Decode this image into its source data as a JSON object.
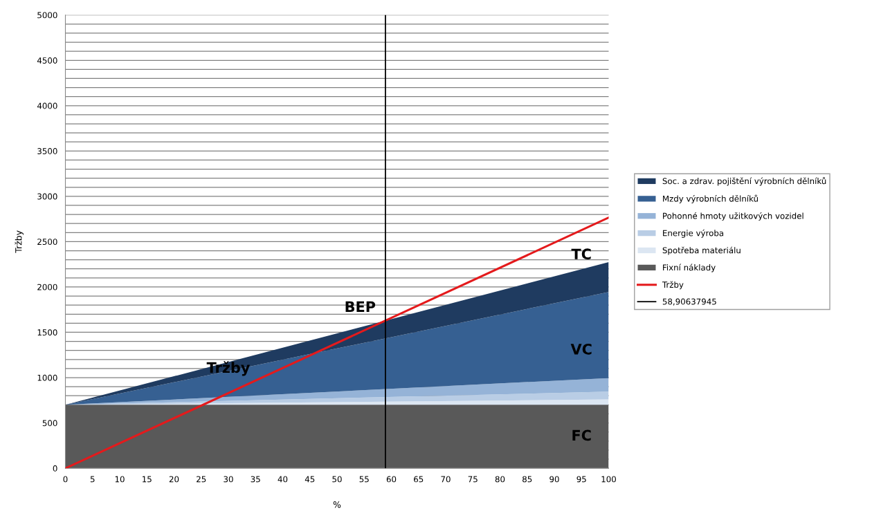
{
  "chart_data": {
    "type": "area",
    "stacked": true,
    "xlabel": "%",
    "ylabel": "Tržby",
    "x": [
      0,
      100
    ],
    "series": [
      {
        "name": "Fixní náklady",
        "color": "#595959",
        "values": [
          700,
          700
        ]
      },
      {
        "name": "Spotřeba materiálu",
        "color": "#dce6f2",
        "values": [
          0,
          60
        ]
      },
      {
        "name": "Energie výroba",
        "color": "#b9cde5",
        "values": [
          0,
          85
        ]
      },
      {
        "name": "Pohonné hmoty užitkových vozidel",
        "color": "#95b3d7",
        "values": [
          0,
          150
        ]
      },
      {
        "name": "Mzdy výrobních dělníků",
        "color": "#366092",
        "values": [
          0,
          950
        ]
      },
      {
        "name": "Soc. a zdrav. pojištění výrobních dělníků",
        "color": "#1f3b60",
        "values": [
          0,
          330
        ]
      },
      {
        "name": "Tržby",
        "type": "line",
        "color": "#e41a1c",
        "values": [
          0,
          2765
        ]
      },
      {
        "name": "58,90637945",
        "type": "line",
        "color": "#000000",
        "x": [
          58.90637945,
          58.90637945
        ],
        "values": [
          0,
          5000
        ]
      }
    ],
    "xlim": [
      0,
      100
    ],
    "xticks": [
      0,
      5,
      10,
      15,
      20,
      25,
      30,
      35,
      40,
      45,
      50,
      55,
      60,
      65,
      70,
      75,
      80,
      85,
      90,
      95,
      100
    ],
    "ylim": [
      0,
      5000
    ],
    "yticks": [
      0,
      {
        "value": 100,
        "label": null
      },
      {
        "value": 200,
        "label": null
      },
      {
        "value": 300,
        "label": null
      },
      {
        "value": 400,
        "label": null
      },
      500,
      {
        "value": 600,
        "label": null
      },
      {
        "value": 700,
        "label": null
      },
      {
        "value": 800,
        "label": null
      },
      {
        "value": 900,
        "label": null
      },
      1000,
      {
        "value": 1100,
        "label": null
      },
      {
        "value": 1200,
        "label": null
      },
      {
        "value": 1300,
        "label": null
      },
      {
        "value": 1400,
        "label": null
      },
      1500,
      {
        "value": 1600,
        "label": null
      },
      {
        "value": 1700,
        "label": null
      },
      {
        "value": 1800,
        "label": null
      },
      {
        "value": 1900,
        "label": null
      },
      2000,
      {
        "value": 2100,
        "label": null
      },
      {
        "value": 2200,
        "label": null
      },
      {
        "value": 2300,
        "label": null
      },
      {
        "value": 2400,
        "label": null
      },
      2500,
      {
        "value": 2600,
        "label": null
      },
      {
        "value": 2700,
        "label": null
      },
      {
        "value": 2800,
        "label": null
      },
      {
        "value": 2900,
        "label": null
      },
      3000,
      {
        "value": 3100,
        "label": null
      },
      {
        "value": 3200,
        "label": null
      },
      {
        "value": 3300,
        "label": null
      },
      {
        "value": 3400,
        "label": null
      },
      3500,
      {
        "value": 3600,
        "label": null
      },
      {
        "value": 3700,
        "label": null
      },
      {
        "value": 3800,
        "label": null
      },
      {
        "value": 3900,
        "label": null
      },
      4000,
      {
        "value": 4100,
        "label": null
      },
      {
        "value": 4200,
        "label": null
      },
      {
        "value": 4300,
        "label": null
      },
      {
        "value": 4400,
        "label": null
      },
      4500,
      {
        "value": 4600,
        "label": null
      },
      {
        "value": 4700,
        "label": null
      },
      {
        "value": 4800,
        "label": null
      },
      {
        "value": 4900,
        "label": null
      },
      5000
    ],
    "grid": "y",
    "legend": "right",
    "annotations": [
      {
        "text": "Tržby",
        "x": 30,
        "y": 1100
      },
      {
        "text": "BEP",
        "x": 58.90637945,
        "y": 1628
      },
      "TC",
      "VC",
      "FC"
    ]
  }
}
